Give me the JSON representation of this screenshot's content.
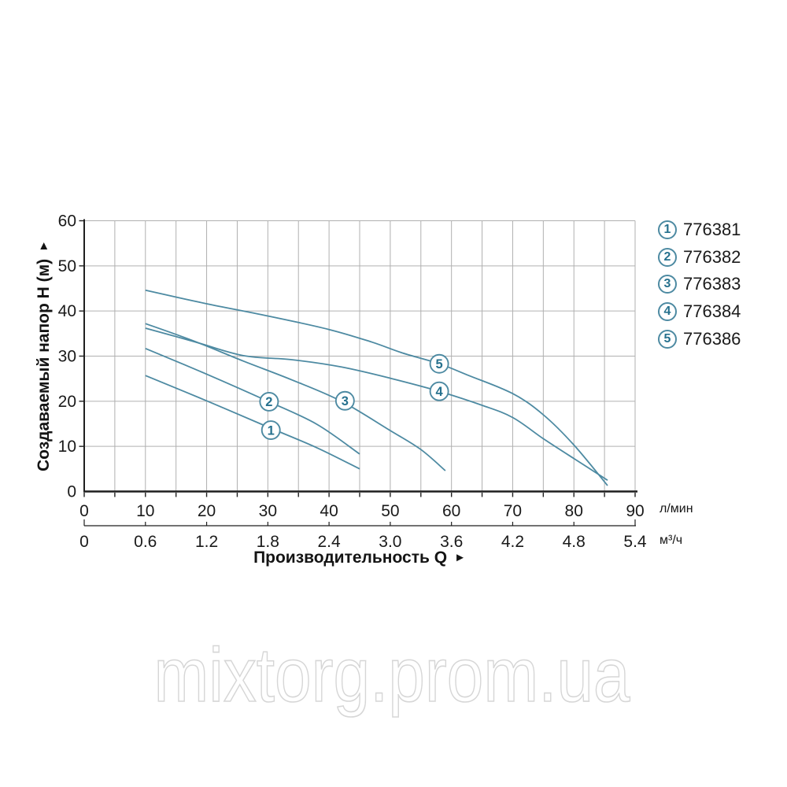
{
  "watermark": {
    "text": "mixtorg.prom.ua"
  },
  "axes": {
    "y": {
      "label": "Создаваемый напор H (м)",
      "arrow": "►",
      "ticks": [
        0,
        10,
        20,
        30,
        40,
        50,
        60
      ]
    },
    "x_lmin": {
      "ticks": [
        0,
        10,
        20,
        30,
        40,
        50,
        60,
        70,
        80,
        90
      ],
      "unit": "л/мин"
    },
    "x_m3h": {
      "ticks": [
        "0",
        "0.6",
        "1.2",
        "1.8",
        "2.4",
        "3.0",
        "3.6",
        "4.2",
        "4.8",
        "5.4"
      ],
      "unit": "м³/ч"
    },
    "x_title": {
      "label": "Производительность Q",
      "arrow": "►"
    }
  },
  "legend": {
    "items": [
      {
        "num": "1",
        "code": "776381"
      },
      {
        "num": "2",
        "code": "776382"
      },
      {
        "num": "3",
        "code": "776383"
      },
      {
        "num": "4",
        "code": "776384"
      },
      {
        "num": "5",
        "code": "776386"
      }
    ]
  },
  "colors": {
    "curve": "#4d8aa2",
    "circle_number": "#26718e",
    "grid": "#b0b0b0",
    "axis": "#1f1f1f",
    "text": "#1a1a1a",
    "watermark_outline": "#d6d6d6"
  },
  "chart_data": {
    "type": "line",
    "title": "",
    "xlabel": "Производительность Q",
    "ylabel": "Создаваемый напор H (м)",
    "x_units": [
      "л/мин",
      "м³/ч"
    ],
    "xlim_lmin": [
      0,
      90
    ],
    "xlim_m3h": [
      0,
      5.4
    ],
    "ylim": [
      0,
      60
    ],
    "grid": {
      "x_step_lmin": 5,
      "y_step": 10,
      "visible": true
    },
    "legend_position": "right-outside",
    "series": [
      {
        "name": "1",
        "code": "776381",
        "label_at": [
          30.5,
          13.6
        ],
        "points": [
          [
            10,
            25.7
          ],
          [
            20,
            20.1
          ],
          [
            30,
            14.3
          ],
          [
            38,
            9.7
          ],
          [
            45,
            5.0
          ]
        ]
      },
      {
        "name": "2",
        "code": "776382",
        "label_at": [
          30.2,
          19.9
        ],
        "points": [
          [
            10,
            31.7
          ],
          [
            20,
            26.0
          ],
          [
            30,
            20.0
          ],
          [
            38,
            14.9
          ],
          [
            45,
            8.3
          ]
        ]
      },
      {
        "name": "3",
        "code": "776383",
        "label_at": [
          42.6,
          20.1
        ],
        "points": [
          [
            10,
            37.2
          ],
          [
            18,
            33.3
          ],
          [
            26,
            28.9
          ],
          [
            34,
            24.7
          ],
          [
            42,
            20.0
          ],
          [
            50,
            13.5
          ],
          [
            55,
            9.3
          ],
          [
            59,
            4.6
          ]
        ]
      },
      {
        "name": "4",
        "code": "776384",
        "label_at": [
          58.0,
          22.2
        ],
        "points": [
          [
            10,
            36.2
          ],
          [
            18,
            33.2
          ],
          [
            26,
            30.1
          ],
          [
            34,
            29.2
          ],
          [
            42,
            27.6
          ],
          [
            50,
            25.1
          ],
          [
            58,
            22.2
          ],
          [
            65,
            19.1
          ],
          [
            70,
            16.4
          ],
          [
            75,
            11.7
          ],
          [
            80,
            7.3
          ],
          [
            85.5,
            2.5
          ]
        ]
      },
      {
        "name": "5",
        "code": "776386",
        "label_at": [
          58.0,
          28.3
        ],
        "points": [
          [
            10,
            44.6
          ],
          [
            20,
            41.6
          ],
          [
            30,
            38.9
          ],
          [
            40,
            35.9
          ],
          [
            47,
            33.1
          ],
          [
            52,
            30.7
          ],
          [
            58,
            28.3
          ],
          [
            63,
            25.6
          ],
          [
            70,
            21.7
          ],
          [
            75,
            17.0
          ],
          [
            80,
            10.3
          ],
          [
            85.5,
            1.3
          ]
        ]
      }
    ]
  }
}
